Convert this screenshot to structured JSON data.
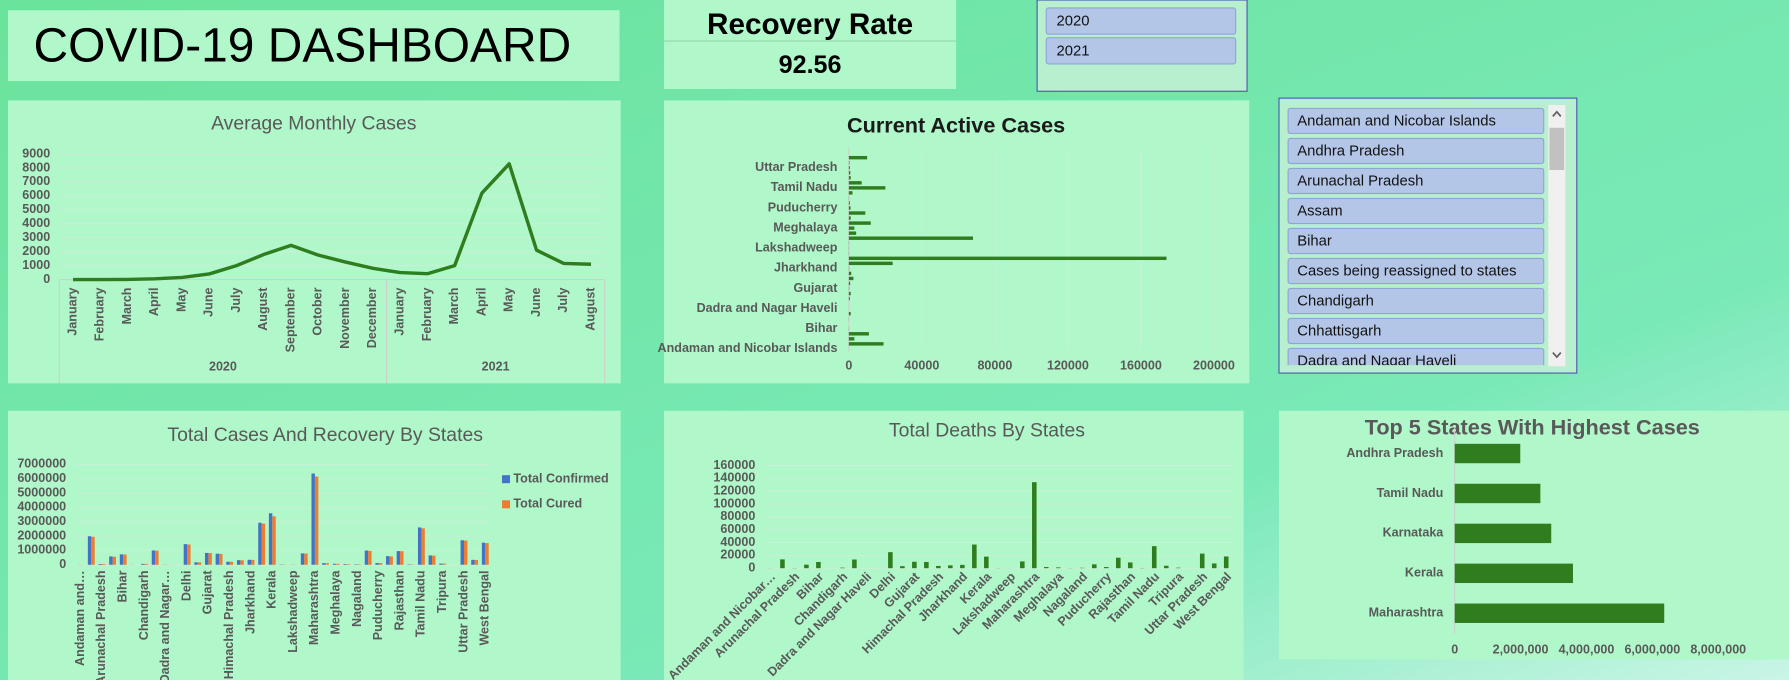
{
  "header": {
    "title": "COVID-19 DASHBOARD"
  },
  "kpi": {
    "title": "Recovery Rate",
    "value": "92.56"
  },
  "year_slicer": {
    "items": [
      "2020",
      "2021"
    ]
  },
  "state_slicer": {
    "items": [
      "Andaman and Nicobar Islands",
      "Andhra Pradesh",
      "Arunachal Pradesh",
      "Assam",
      "Bihar",
      "Cases being reassigned to states",
      "Chandigarh",
      "Chhattisgarh",
      "Dadra and Nagar Haveli"
    ]
  },
  "chart_data": [
    {
      "type": "line",
      "title": "Average Monthly Cases",
      "color": "#2e7d1e",
      "grid": true,
      "groups": [
        {
          "label": "2020",
          "categories": [
            "January",
            "February",
            "March",
            "April",
            "May",
            "June",
            "July",
            "August",
            "September",
            "October",
            "November",
            "December"
          ],
          "values": [
            0,
            0,
            10,
            50,
            150,
            400,
            1000,
            1800,
            2450,
            1750,
            1250,
            800
          ]
        },
        {
          "label": "2021",
          "categories": [
            "January",
            "February",
            "March",
            "April",
            "May",
            "June",
            "July",
            "August"
          ],
          "values": [
            500,
            420,
            1000,
            6200,
            8300,
            2100,
            1150,
            1100
          ]
        }
      ],
      "ylim": [
        0,
        9000
      ],
      "yticks": [
        0,
        1000,
        2000,
        3000,
        4000,
        5000,
        6000,
        7000,
        8000,
        9000
      ]
    },
    {
      "type": "hbar",
      "title": "Current Active Cases",
      "color": "#2e7d1e",
      "grid": true,
      "categories": [
        "Andaman and Nicobar Islands",
        null,
        null,
        null,
        "Bihar",
        null,
        null,
        null,
        "Dadra and Nagar Haveli",
        null,
        null,
        null,
        "Gujarat",
        null,
        null,
        null,
        "Jharkhand",
        null,
        null,
        null,
        "Lakshadweep",
        null,
        null,
        null,
        "Meghalaya",
        null,
        null,
        null,
        "Puducherry",
        null,
        null,
        null,
        "Tamil Nadu",
        null,
        null,
        null,
        "Uttar Pradesh",
        null,
        null
      ],
      "values": [
        10,
        19000,
        3000,
        11000,
        100,
        0,
        50,
        1000,
        0,
        0,
        500,
        1000,
        200,
        700,
        2500,
        1300,
        150,
        24000,
        174000,
        100,
        100,
        100,
        68000,
        4000,
        3000,
        12000,
        1000,
        9000,
        900,
        500,
        100,
        2000,
        20000,
        7000,
        1000,
        800,
        500,
        300,
        10000
      ],
      "xlim": [
        0,
        200000
      ],
      "xticks": [
        0,
        40000,
        80000,
        120000,
        160000,
        200000
      ]
    },
    {
      "type": "grouped_bar",
      "title": "Total Cases And Recovery By States",
      "grid": true,
      "categories": [
        "Andaman and…",
        null,
        "Arunachal Pradesh",
        null,
        "Bihar",
        null,
        "Chandigarh",
        null,
        "Dadra and Nagar…",
        null,
        "Delhi",
        null,
        "Gujarat",
        null,
        "Himachal Pradesh",
        null,
        "Jharkhand",
        null,
        "Kerala",
        null,
        "Lakshadweep",
        null,
        "Maharashtra",
        null,
        "Meghalaya",
        null,
        "Nagaland",
        null,
        "Puducherry",
        null,
        "Rajasthan",
        null,
        "Tamil Nadu",
        null,
        "Tripura",
        null,
        "Uttar Pradesh",
        null,
        "West Bengal"
      ],
      "series": [
        {
          "name": "Total Confirmed",
          "color": "#4472c4",
          "values": [
            7550,
            1990000,
            52000,
            580000,
            725000,
            9265,
            62000,
            1000000,
            10377,
            0,
            1437000,
            172000,
            825000,
            770000,
            210000,
            322000,
            347000,
            2930000,
            3590000,
            20400,
            10300,
            792000,
            6360000,
            111000,
            70000,
            50000,
            30000,
            990000,
            122000,
            600000,
            954000,
            28000,
            2600000,
            650000,
            81000,
            0,
            1709000,
            343000,
            1540000
          ]
        },
        {
          "name": "Total Cured",
          "color": "#ed7d31",
          "values": [
            7400,
            1950000,
            49000,
            560000,
            715000,
            0,
            61000,
            985000,
            10300,
            0,
            1411000,
            166000,
            814000,
            759000,
            204000,
            313000,
            341000,
            2870000,
            3380000,
            20000,
            10200,
            781000,
            6150000,
            107000,
            66000,
            40000,
            28000,
            970000,
            119000,
            585000,
            945000,
            25000,
            2540000,
            636000,
            79000,
            0,
            1685000,
            334000,
            1510000
          ]
        }
      ],
      "ylim": [
        0,
        7000000
      ],
      "yticks": [
        0,
        1000000,
        2000000,
        3000000,
        4000000,
        5000000,
        6000000,
        7000000
      ]
    },
    {
      "type": "bar",
      "title": "Total Deaths By States",
      "color": "#2e7d1e",
      "grid": true,
      "categories": [
        "Andaman and Nicobar…",
        null,
        "Arunachal Pradesh",
        null,
        "Bihar",
        null,
        "Chandigarh",
        null,
        "Dadra and Nagar Haveli",
        null,
        "Delhi",
        null,
        "Gujarat",
        null,
        "Himachal Pradesh",
        null,
        "Jharkhand",
        null,
        "Kerala",
        null,
        "Lakshadweep",
        null,
        "Maharashtra",
        null,
        "Meghalaya",
        null,
        "Nagaland",
        null,
        "Puducherry",
        null,
        "Rajasthan",
        null,
        "Tamil Nadu",
        null,
        "Tripura",
        null,
        "Uttar Pradesh",
        null,
        "West Bengal"
      ],
      "values": [
        129,
        13700,
        260,
        5500,
        9650,
        0,
        811,
        13500,
        4,
        0,
        25000,
        3150,
        10000,
        9650,
        3500,
        4400,
        5130,
        36800,
        18000,
        207,
        50,
        10500,
        134000,
        1800,
        1200,
        200,
        600,
        6000,
        1800,
        16300,
        8950,
        350,
        34300,
        3800,
        770,
        0,
        22700,
        7350,
        18250
      ],
      "ylim": [
        0,
        160000
      ],
      "yticks": [
        0,
        20000,
        40000,
        60000,
        80000,
        100000,
        120000,
        140000,
        160000
      ]
    },
    {
      "type": "hbar",
      "title": "Top 5 States With Highest Cases",
      "color": "#2e7d1e",
      "grid": false,
      "categories": [
        "Maharashtra",
        "Kerala",
        "Karnataka",
        "Tamil Nadu",
        "Andhra Pradesh"
      ],
      "values": [
        6360000,
        3590000,
        2930000,
        2600000,
        1990000
      ],
      "xlim": [
        0,
        8000000
      ],
      "xticks": [
        0,
        {
          "value": 2000000,
          "label": "2,000,000"
        },
        {
          "value": 4000000,
          "label": "4,000,000"
        },
        {
          "value": 6000000,
          "label": "6,000,000"
        },
        {
          "value": 8000000,
          "label": "8,000,000"
        }
      ]
    }
  ]
}
